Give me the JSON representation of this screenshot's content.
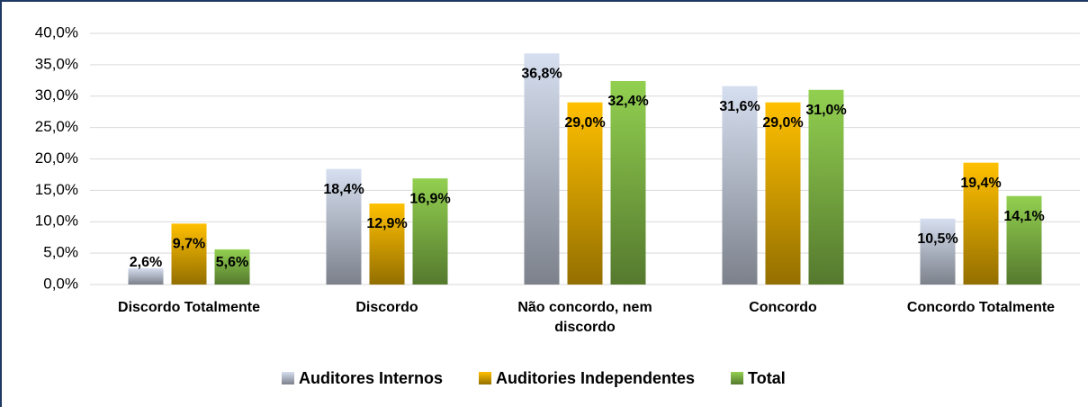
{
  "chart_data": {
    "type": "bar",
    "categories": [
      "Discordo Totalmente",
      "Discordo",
      "Não concordo, nem discordo",
      "Concordo",
      "Concordo Totalmente"
    ],
    "series": [
      {
        "name": "Auditores Internos",
        "color": "#d6dff0",
        "values": [
          2.6,
          18.4,
          36.8,
          31.6,
          10.5
        ],
        "value_labels": [
          "2,6%",
          "18,4%",
          "36,8%",
          "31,6%",
          "10,5%"
        ]
      },
      {
        "name": "Auditories Independentes",
        "color": "#ffc000",
        "values": [
          9.7,
          12.9,
          29.0,
          29.0,
          19.4
        ],
        "value_labels": [
          "9,7%",
          "12,9%",
          "29,0%",
          "29,0%",
          "19,4%"
        ]
      },
      {
        "name": "Total",
        "color": "#92d050",
        "values": [
          5.6,
          16.9,
          32.4,
          31.0,
          14.1
        ],
        "value_labels": [
          "5,6%",
          "16,9%",
          "32,4%",
          "31,0%",
          "14,1%"
        ]
      }
    ],
    "ylim": [
      0,
      40
    ],
    "yticks": [
      {
        "value": 0,
        "label": "0,0%"
      },
      {
        "value": 5,
        "label": "5,0%"
      },
      {
        "value": 10,
        "label": "10,0%"
      },
      {
        "value": 15,
        "label": "15,0%"
      },
      {
        "value": 20,
        "label": "20,0%"
      },
      {
        "value": 25,
        "label": "25,0%"
      },
      {
        "value": 30,
        "label": "30,0%"
      },
      {
        "value": 35,
        "label": "35,0%"
      },
      {
        "value": 40,
        "label": "40,0%"
      }
    ],
    "grid": true,
    "legend": "bottom"
  }
}
